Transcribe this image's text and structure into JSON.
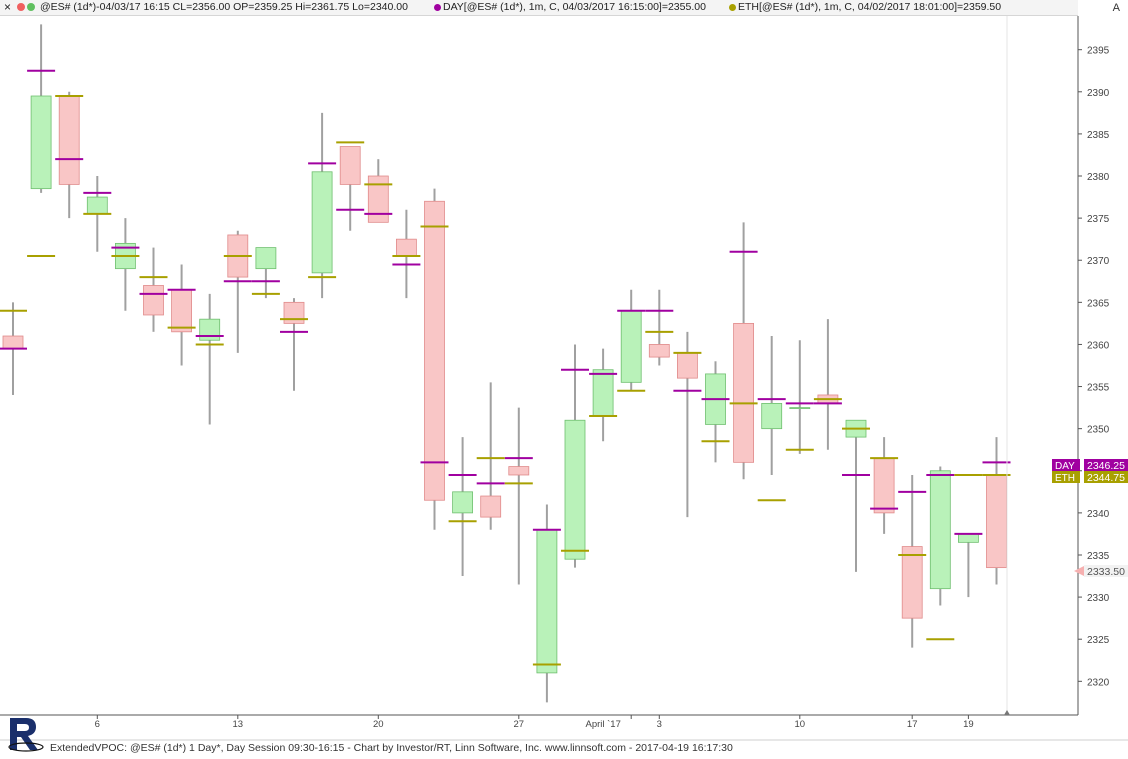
{
  "header": {
    "close_glyph": "×",
    "main_label": "@ES# (1d*)-04/03/17 16:15 CL=2356.00 OP=2359.25 Hi=2361.75 Lo=2340.00",
    "day_label": "DAY[@ES# (1d*), 1m, C, 04/03/2017 16:15:00]=2355.00",
    "eth_label": "ETH[@ES# (1d*), 1m, C, 04/02/2017 18:01:00]=2359.50",
    "scale_corner": "A"
  },
  "colors": {
    "up_fill": "#b9f2b9",
    "down_fill": "#f9c6c6",
    "candle_border_up": "#6fbf6f",
    "candle_border_down": "#e08a8a",
    "wick": "#a0a0a0",
    "day": "#a000a0",
    "eth": "#a8a000",
    "axis": "#555555",
    "circle_red": "#f06060",
    "circle_green": "#60c060"
  },
  "footer": {
    "text": "ExtendedVPOC: @ES# (1d*) 1 Day*, Day Session 09:30-16:15 - Chart by Investor/RT, Linn Software, Inc. www.linnsoft.com - 2017-04-19 16:17:30"
  },
  "chart_data": {
    "type": "candlestick",
    "title": "",
    "ylim": [
      2316,
      2399
    ],
    "y_ticks": [
      2320,
      2325,
      2330,
      2335,
      2340,
      2345,
      2350,
      2355,
      2360,
      2365,
      2370,
      2375,
      2380,
      2385,
      2390,
      2395
    ],
    "x_tick_labels": [
      {
        "label": "6",
        "index": 3
      },
      {
        "label": "13",
        "index": 8
      },
      {
        "label": "20",
        "index": 13
      },
      {
        "label": "27",
        "index": 18
      },
      {
        "label": "April `17",
        "index": 22
      },
      {
        "label": "3",
        "index": 23
      },
      {
        "label": "10",
        "index": 28
      },
      {
        "label": "17",
        "index": 32
      },
      {
        "label": "19",
        "index": 34
      }
    ],
    "series": [
      {
        "name": "@ES# (1d*)",
        "candles": [
          {
            "o": 2361.0,
            "h": 2365.0,
            "l": 2354.0,
            "c": 2359.5
          },
          {
            "o": 2378.5,
            "h": 2398.0,
            "l": 2378.0,
            "c": 2389.5
          },
          {
            "o": 2389.5,
            "h": 2390.0,
            "l": 2375.0,
            "c": 2379.0
          },
          {
            "o": 2375.5,
            "h": 2380.0,
            "l": 2371.0,
            "c": 2377.5
          },
          {
            "o": 2369.0,
            "h": 2375.0,
            "l": 2364.0,
            "c": 2372.0
          },
          {
            "o": 2367.0,
            "h": 2371.5,
            "l": 2361.5,
            "c": 2363.5
          },
          {
            "o": 2366.5,
            "h": 2369.5,
            "l": 2357.5,
            "c": 2361.5
          },
          {
            "o": 2360.5,
            "h": 2366.0,
            "l": 2350.5,
            "c": 2363.0
          },
          {
            "o": 2373.0,
            "h": 2373.5,
            "l": 2359.0,
            "c": 2368.0
          },
          {
            "o": 2369.0,
            "h": 2371.5,
            "l": 2365.5,
            "c": 2371.5
          },
          {
            "o": 2365.0,
            "h": 2365.5,
            "l": 2354.5,
            "c": 2362.5
          },
          {
            "o": 2368.5,
            "h": 2387.5,
            "l": 2365.5,
            "c": 2380.5
          },
          {
            "o": 2383.5,
            "h": 2383.5,
            "l": 2373.5,
            "c": 2379.0
          },
          {
            "o": 2380.0,
            "h": 2382.0,
            "l": 2374.5,
            "c": 2374.5
          },
          {
            "o": 2372.5,
            "h": 2376.0,
            "l": 2365.5,
            "c": 2370.5
          },
          {
            "o": 2377.0,
            "h": 2378.5,
            "l": 2338.0,
            "c": 2341.5
          },
          {
            "o": 2340.0,
            "h": 2349.0,
            "l": 2332.5,
            "c": 2342.5
          },
          {
            "o": 2342.0,
            "h": 2355.5,
            "l": 2338.0,
            "c": 2339.5
          },
          {
            "o": 2345.5,
            "h": 2352.5,
            "l": 2331.5,
            "c": 2344.5
          },
          {
            "o": 2321.0,
            "h": 2341.0,
            "l": 2317.5,
            "c": 2338.0
          },
          {
            "o": 2334.5,
            "h": 2360.0,
            "l": 2333.5,
            "c": 2351.0
          },
          {
            "o": 2351.5,
            "h": 2359.5,
            "l": 2348.5,
            "c": 2357.0
          },
          {
            "o": 2355.5,
            "h": 2366.5,
            "l": 2354.5,
            "c": 2364.0
          },
          {
            "o": 2360.0,
            "h": 2366.5,
            "l": 2357.5,
            "c": 2358.5
          },
          {
            "o": 2359.0,
            "h": 2361.5,
            "l": 2339.5,
            "c": 2356.0
          },
          {
            "o": 2350.5,
            "h": 2358.0,
            "l": 2346.0,
            "c": 2356.5
          },
          {
            "o": 2362.5,
            "h": 2374.5,
            "l": 2344.0,
            "c": 2346.0
          },
          {
            "o": 2350.0,
            "h": 2361.0,
            "l": 2344.5,
            "c": 2353.0
          },
          {
            "o": 2352.5,
            "h": 2360.5,
            "l": 2347.0,
            "c": 2352.5
          },
          {
            "o": 2354.0,
            "h": 2363.0,
            "l": 2347.5,
            "c": 2353.0
          },
          {
            "o": 2349.0,
            "h": 2351.0,
            "l": 2333.0,
            "c": 2351.0
          },
          {
            "o": 2346.5,
            "h": 2349.0,
            "l": 2337.5,
            "c": 2340.0
          },
          {
            "o": 2336.0,
            "h": 2344.5,
            "l": 2324.0,
            "c": 2327.5
          },
          {
            "o": 2331.0,
            "h": 2345.5,
            "l": 2329.0,
            "c": 2345.0
          },
          {
            "o": 2336.5,
            "h": 2337.5,
            "l": 2330.0,
            "c": 2337.5
          },
          {
            "o": 2344.5,
            "h": 2349.0,
            "l": 2331.5,
            "c": 2333.5
          }
        ]
      },
      {
        "name": "DAY",
        "values": [
          2359.5,
          2392.5,
          2382.0,
          2378.0,
          2371.5,
          2366.0,
          2366.5,
          2361.0,
          2367.5,
          2367.5,
          2361.5,
          2381.5,
          2376.0,
          2375.5,
          2369.5,
          2346.0,
          2344.5,
          2343.5,
          2346.5,
          2338.0,
          2357.0,
          2356.5,
          2364.0,
          2364.0,
          2354.5,
          2353.5,
          2371.0,
          2353.5,
          2353.0,
          2353.0,
          2344.5,
          2340.5,
          2342.5,
          2344.5,
          2337.5,
          2346.0
        ]
      },
      {
        "name": "ETH",
        "values": [
          2364.0,
          2370.5,
          2389.5,
          2375.5,
          2370.5,
          2368.0,
          2362.0,
          2360.0,
          2370.5,
          2366.0,
          2363.0,
          2368.0,
          2384.0,
          2379.0,
          2370.5,
          2374.0,
          2339.0,
          2346.5,
          2343.5,
          2322.0,
          2335.5,
          2351.5,
          2354.5,
          2361.5,
          2359.0,
          2348.5,
          2353.0,
          2341.5,
          2347.5,
          2353.5,
          2350.0,
          2346.5,
          2335.0,
          2325.0,
          2344.5,
          2344.5
        ]
      }
    ],
    "last_values": [
      {
        "label": "DAY",
        "value": "2346.25"
      },
      {
        "label": "ETH",
        "value": "2344.75"
      },
      {
        "label": "",
        "value": "2333.50"
      }
    ]
  }
}
